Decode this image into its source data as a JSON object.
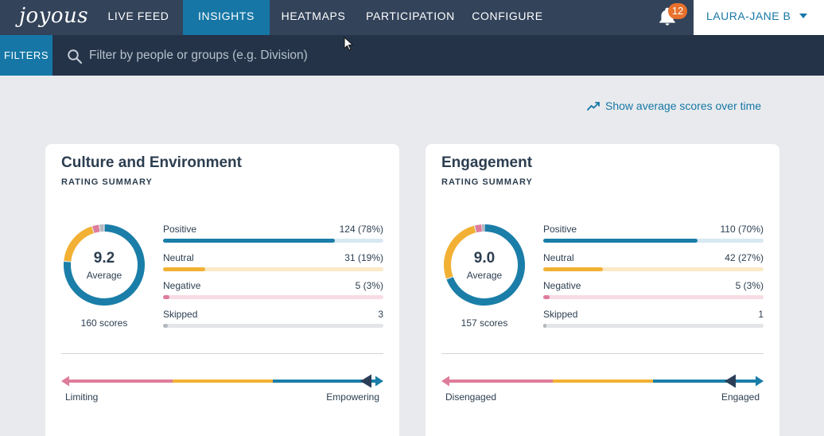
{
  "app": {
    "logo": "joyous"
  },
  "nav": {
    "items": [
      {
        "label": "LIVE FEED"
      },
      {
        "label": "INSIGHTS"
      },
      {
        "label": "HEATMAPS"
      },
      {
        "label": "PARTICIPATION"
      },
      {
        "label": "CONFIGURE"
      }
    ],
    "active": "INSIGHTS",
    "notifications_count": "12",
    "user_name": "LAURA-JANE B"
  },
  "filter_bar": {
    "button_label": "FILTERS",
    "search_placeholder": "Filter by people or groups (e.g. Division)"
  },
  "trend_link": {
    "label": "Show average scores over time"
  },
  "colors": {
    "positive": "#1a7ea8",
    "neutral": "#f2b134",
    "negative": "#de7d9b",
    "skipped": "#b4b9bf"
  },
  "cards": [
    {
      "title": "Culture and Environment",
      "subtitle": "RATING SUMMARY",
      "average": "9.2",
      "average_label": "Average",
      "scores": "160 scores",
      "rows": [
        {
          "label": "Positive",
          "value": "124 (78%)",
          "fraction": 0.78
        },
        {
          "label": "Neutral",
          "value": "31 (19%)",
          "fraction": 0.19
        },
        {
          "label": "Negative",
          "value": "5 (3%)",
          "fraction": 0.03
        },
        {
          "label": "Skipped",
          "value": "3",
          "fraction": 0.02
        }
      ],
      "scale_left": "Limiting",
      "scale_right": "Empowering"
    },
    {
      "title": "Engagement",
      "subtitle": "RATING SUMMARY",
      "average": "9.0",
      "average_label": "Average",
      "scores": "157 scores",
      "rows": [
        {
          "label": "Positive",
          "value": "110 (70%)",
          "fraction": 0.7
        },
        {
          "label": "Neutral",
          "value": "42 (27%)",
          "fraction": 0.27
        },
        {
          "label": "Negative",
          "value": "5 (3%)",
          "fraction": 0.03
        },
        {
          "label": "Skipped",
          "value": "1",
          "fraction": 0.01
        }
      ],
      "scale_left": "Disengaged",
      "scale_right": "Engaged"
    }
  ]
}
